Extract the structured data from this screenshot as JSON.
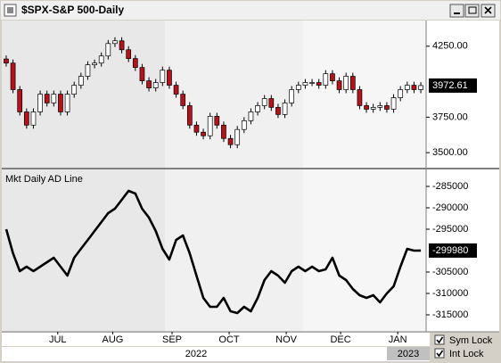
{
  "window": {
    "title": "$SPX-S&P 500-Daily"
  },
  "controls": [
    {
      "label": "Sym Lock",
      "checked": true
    },
    {
      "label": "Int Lock",
      "checked": true
    }
  ],
  "chart_data": [
    {
      "type": "candlestick",
      "up_color": "#ffffff",
      "down_color": "#b5121b",
      "xlim": [
        -0.65,
        61.78
      ],
      "xticks": [
        {
          "value": 7.58,
          "label": "JUL"
        },
        {
          "value": 15.67,
          "label": "AUG"
        },
        {
          "value": 24.4,
          "label": "SEP"
        },
        {
          "value": 32.8,
          "label": "OCT"
        },
        {
          "value": 41.2,
          "label": "NOV"
        },
        {
          "value": 49.2,
          "label": "DEC"
        },
        {
          "value": 57.6,
          "label": "JAN"
        }
      ],
      "years": [
        "2022",
        "2023"
      ],
      "ylim": [
        3394,
        4431
      ],
      "yticks": [
        {
          "value": 3500,
          "label": "3500.00"
        },
        {
          "value": 3750,
          "label": "3750.00"
        },
        {
          "value": 4250,
          "label": "4250.00"
        }
      ],
      "open": [
        4160,
        4131,
        3944,
        3787,
        3694,
        3787,
        3912,
        3850,
        3912,
        3787,
        3912,
        3975,
        4038,
        4119,
        4131,
        4181,
        4269,
        4288,
        4225,
        4163,
        4100,
        4006,
        3956,
        3994,
        4081,
        3975,
        3912,
        3831,
        3694,
        3644,
        3619,
        3756,
        3694,
        3600,
        3556,
        3663,
        3725,
        3787,
        3831,
        3881,
        3819,
        3769,
        3850,
        3944,
        3975,
        3994,
        3994,
        3975,
        4056,
        4006,
        3944,
        4038,
        3944,
        3831,
        3806,
        3819,
        3831,
        3806,
        3887,
        3944,
        3975,
        3944
      ],
      "high": [
        4185,
        4156,
        3969,
        3812,
        3812,
        3937,
        3937,
        3937,
        3937,
        3937,
        4000,
        4063,
        4144,
        4156,
        4206,
        4294,
        4313,
        4313,
        4250,
        4188,
        4125,
        4031,
        4019,
        4106,
        4106,
        4000,
        3937,
        3856,
        3719,
        3669,
        3781,
        3781,
        3719,
        3625,
        3688,
        3750,
        3812,
        3856,
        3906,
        3906,
        3844,
        3875,
        3969,
        4000,
        4019,
        4019,
        4019,
        4081,
        4081,
        4031,
        4063,
        4063,
        3969,
        3856,
        3844,
        3856,
        3856,
        3912,
        3969,
        4000,
        4000,
        3997
      ],
      "low": [
        4106,
        3919,
        3762,
        3669,
        3669,
        3762,
        3825,
        3825,
        3762,
        3762,
        3887,
        3950,
        4013,
        4094,
        4106,
        4156,
        4244,
        4200,
        4138,
        4075,
        3981,
        3931,
        3931,
        3969,
        3950,
        3887,
        3806,
        3669,
        3619,
        3594,
        3594,
        3669,
        3575,
        3531,
        3531,
        3638,
        3700,
        3762,
        3806,
        3794,
        3744,
        3744,
        3825,
        3919,
        3950,
        3969,
        3950,
        3950,
        3981,
        3919,
        3919,
        3919,
        3806,
        3781,
        3781,
        3794,
        3781,
        3781,
        3862,
        3919,
        3919,
        3919
      ],
      "close": [
        4131,
        3944,
        3787,
        3694,
        3787,
        3912,
        3850,
        3912,
        3787,
        3912,
        3975,
        4038,
        4119,
        4131,
        4181,
        4269,
        4288,
        4225,
        4163,
        4100,
        4006,
        3956,
        3994,
        4081,
        3975,
        3912,
        3831,
        3694,
        3644,
        3619,
        3756,
        3694,
        3600,
        3556,
        3663,
        3725,
        3787,
        3831,
        3881,
        3819,
        3769,
        3850,
        3944,
        3975,
        3994,
        3994,
        3975,
        4056,
        4006,
        3944,
        4038,
        3944,
        3831,
        3806,
        3819,
        3831,
        3806,
        3887,
        3944,
        3975,
        3944,
        3972.61
      ]
    },
    {
      "type": "line",
      "title": "Mkt Daily AD Line",
      "color": "#000000",
      "ylim": [
        -318750,
        -281250
      ],
      "yticks": [
        -285000,
        -290000,
        -295000,
        -305000,
        -310000,
        -315000
      ],
      "values": [
        -295000,
        -300625,
        -304792,
        -303750,
        -304792,
        -303750,
        -302708,
        -301667,
        -303750,
        -305833,
        -301667,
        -299583,
        -297500,
        -295417,
        -293333,
        -291250,
        -290208,
        -288125,
        -286042,
        -286667,
        -290208,
        -292292,
        -295417,
        -299583,
        -302083,
        -297500,
        -296458,
        -300625,
        -305833,
        -311042,
        -313125,
        -313125,
        -311042,
        -314167,
        -314583,
        -313125,
        -314167,
        -311042,
        -306875,
        -304792,
        -305833,
        -307500,
        -304792,
        -303750,
        -304792,
        -303750,
        -304792,
        -304375,
        -301667,
        -305833,
        -306875,
        -308958,
        -310417,
        -311042,
        -310417,
        -312083,
        -310000,
        -308333,
        -303750,
        -299583,
        -300000,
        -299980
      ]
    }
  ]
}
